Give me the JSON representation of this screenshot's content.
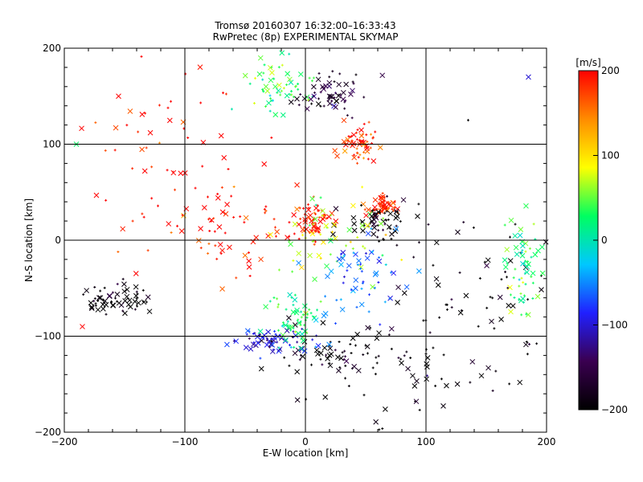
{
  "chart_data": {
    "type": "scatter",
    "title": "Tromsø 20160307 16:32:00–16:33:43",
    "subtitle": "RwPretec (8p) EXPERIMENTAL SKYMAP",
    "xlabel": "E-W location [km]",
    "ylabel": "N-S location [km]",
    "xlim": [
      -200,
      200
    ],
    "ylim": [
      -200,
      200
    ],
    "xticks": [
      -200,
      -100,
      0,
      100,
      200
    ],
    "yticks": [
      -200,
      -100,
      0,
      100,
      200
    ],
    "grid": true,
    "markers": [
      "+",
      "x"
    ],
    "colorbar": {
      "label": "[m/s]",
      "min": -200,
      "max": 200,
      "ticks": [
        -200,
        -100,
        0,
        100,
        200
      ],
      "colors": [
        "#000000",
        "#3a0050",
        "#2020ff",
        "#00c8ff",
        "#00ff60",
        "#ffff00",
        "#ff8c00",
        "#ff0000"
      ]
    },
    "clusters": [
      {
        "x": 65,
        "y": 35,
        "velocity": 190,
        "spread": [
          6,
          6
        ]
      },
      {
        "x": 45,
        "y": 100,
        "velocity": 180,
        "spread": [
          8,
          10
        ]
      },
      {
        "x": 5,
        "y": 20,
        "velocity": 190,
        "spread": [
          8,
          8
        ]
      },
      {
        "x": 60,
        "y": 20,
        "velocity": -200,
        "spread": [
          15,
          12
        ]
      },
      {
        "x": 20,
        "y": -120,
        "velocity": -200,
        "spread": [
          25,
          15
        ]
      },
      {
        "x": -25,
        "y": -105,
        "velocity": -100,
        "spread": [
          15,
          8
        ]
      },
      {
        "x": -10,
        "y": -80,
        "velocity": 30,
        "spread": [
          10,
          15
        ]
      },
      {
        "x": -20,
        "y": 160,
        "velocity": 40,
        "spread": [
          15,
          15
        ]
      },
      {
        "x": 20,
        "y": 150,
        "velocity": -170,
        "spread": [
          15,
          12
        ]
      },
      {
        "x": 150,
        "y": -60,
        "velocity": -200,
        "spread": [
          40,
          40
        ]
      },
      {
        "x": -55,
        "y": 10,
        "velocity": 190,
        "spread": [
          35,
          25
        ]
      },
      {
        "x": -110,
        "y": 80,
        "velocity": 195,
        "spread": [
          40,
          45
        ]
      },
      {
        "x": 20,
        "y": 0,
        "velocity": 60,
        "spread": [
          25,
          20
        ]
      },
      {
        "x": 40,
        "y": -40,
        "velocity": -60,
        "spread": [
          20,
          25
        ]
      },
      {
        "x": 180,
        "y": -30,
        "velocity": 30,
        "spread": [
          8,
          25
        ]
      },
      {
        "x": -160,
        "y": -60,
        "velocity": -200,
        "spread": [
          15,
          8
        ]
      },
      {
        "x": 90,
        "y": -130,
        "velocity": -200,
        "spread": [
          40,
          40
        ]
      }
    ],
    "sample_points": [
      {
        "x": 65,
        "y": 35,
        "velocity": 190,
        "marker": "x"
      },
      {
        "x": 45,
        "y": 100,
        "velocity": 180,
        "marker": "x"
      },
      {
        "x": 5,
        "y": 20,
        "velocity": 190,
        "marker": "x"
      },
      {
        "x": 55,
        "y": 25,
        "velocity": -200,
        "marker": "x"
      },
      {
        "x": 20,
        "y": -120,
        "velocity": -200,
        "marker": "x"
      },
      {
        "x": -30,
        "y": -105,
        "velocity": -100,
        "marker": "x"
      },
      {
        "x": -10,
        "y": -75,
        "velocity": 30,
        "marker": "x"
      },
      {
        "x": -25,
        "y": 160,
        "velocity": 40,
        "marker": "x"
      },
      {
        "x": 20,
        "y": 150,
        "velocity": -170,
        "marker": "x"
      },
      {
        "x": -170,
        "y": -60,
        "velocity": -200,
        "marker": "x"
      },
      {
        "x": -155,
        "y": 150,
        "velocity": 200,
        "marker": "x"
      },
      {
        "x": 185,
        "y": 170,
        "velocity": -100,
        "marker": "x"
      },
      {
        "x": 185,
        "y": -25,
        "velocity": 30,
        "marker": "x"
      },
      {
        "x": -185,
        "y": -90,
        "velocity": 200,
        "marker": "x"
      },
      {
        "x": -190,
        "y": 100,
        "velocity": 30,
        "marker": "x"
      },
      {
        "x": 135,
        "y": 125,
        "velocity": -200,
        "marker": "+"
      }
    ]
  }
}
